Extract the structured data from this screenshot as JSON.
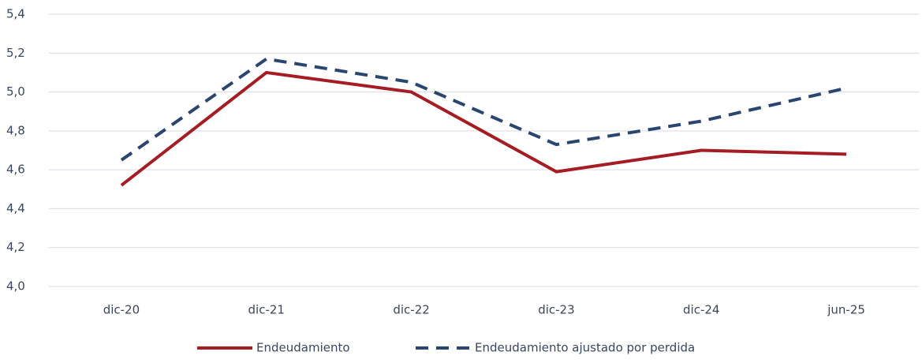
{
  "chart_data": {
    "type": "line",
    "categories": [
      "dic-20",
      "dic-21",
      "dic-22",
      "dic-23",
      "dic-24",
      "jun-25"
    ],
    "series": [
      {
        "name": "Endeudamiento",
        "color": "#a51c24",
        "dash": false,
        "values": [
          4.52,
          5.1,
          5.0,
          4.59,
          4.7,
          4.68
        ]
      },
      {
        "name": "Endeudamiento ajustado por perdida",
        "color": "#2a4670",
        "dash": true,
        "values": [
          4.65,
          5.17,
          5.05,
          4.73,
          4.85,
          5.02
        ]
      }
    ],
    "ylim": [
      4.0,
      5.4
    ],
    "yticks": [
      {
        "value": 4.0,
        "label": "4,0"
      },
      {
        "value": 4.2,
        "label": "4,2"
      },
      {
        "value": 4.4,
        "label": "4,4"
      },
      {
        "value": 4.6,
        "label": "4,6"
      },
      {
        "value": 4.8,
        "label": "4,8"
      },
      {
        "value": 5.0,
        "label": "5,0"
      },
      {
        "value": 5.2,
        "label": "5,2"
      },
      {
        "value": 5.4,
        "label": "5,4"
      }
    ],
    "grid": true,
    "legend": "bottom"
  }
}
